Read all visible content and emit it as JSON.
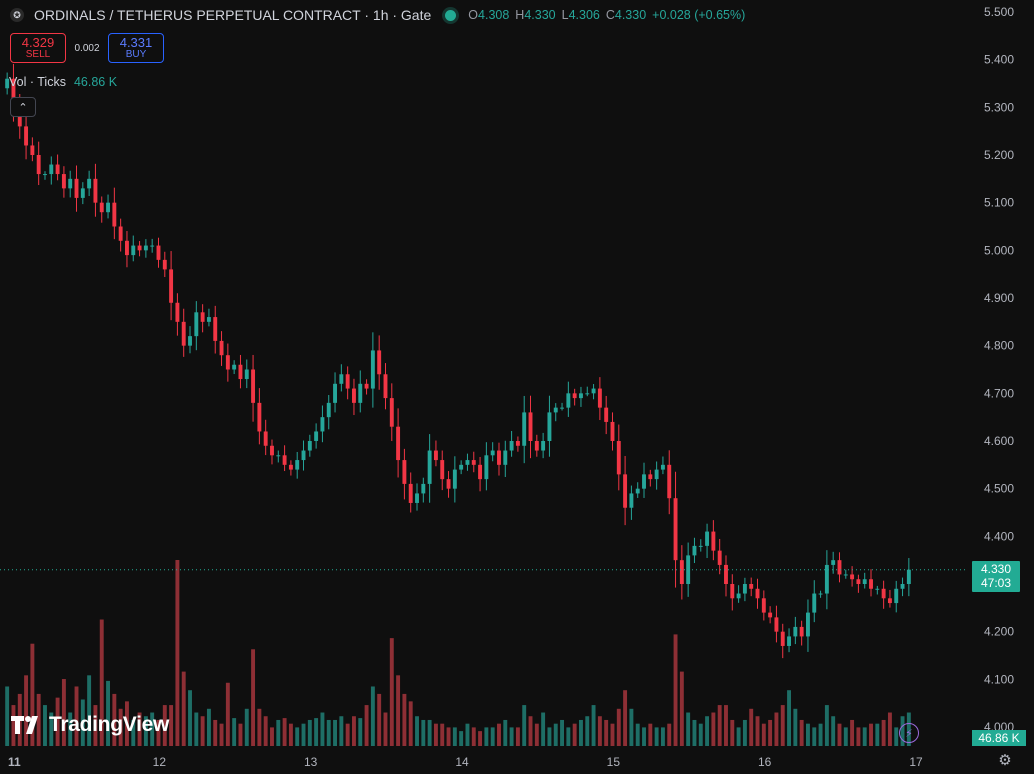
{
  "header": {
    "symbol_icon": "exchange-logo-icon",
    "title": "ORDINALS / TETHERUS PERPETUAL CONTRACT · 1h · Gate",
    "ohlc": {
      "o_label": "O",
      "o": "4.308",
      "h_label": "H",
      "h": "4.330",
      "l_label": "L",
      "l": "4.306",
      "c_label": "C",
      "c": "4.330",
      "change": "+0.028 (+0.65%)"
    }
  },
  "trade": {
    "sell_price": "4.329",
    "sell_label": "SELL",
    "spread": "0.002",
    "buy_price": "4.331",
    "buy_label": "BUY"
  },
  "volume_legend": {
    "label": "Vol · Ticks",
    "value": "46.86 K"
  },
  "collapse_icon": "chevron-up-icon",
  "logo": {
    "text": "TradingView",
    "icon": "tradingview-logo-icon"
  },
  "price_tag": {
    "price": "4.330",
    "countdown": "47:03"
  },
  "volume_tag": "46.86 K",
  "colors": {
    "up": "#26a69a",
    "down": "#f23645",
    "up_vol": "#1e6e66",
    "down_vol": "#8e2f35",
    "background": "#0f0f0f"
  },
  "chart_data": {
    "type": "candlestick",
    "title": "ORDINALS / TETHERUS PERPETUAL CONTRACT · 1h · Gate",
    "interval": "1h",
    "y_ticks": [
      "5.500",
      "5.400",
      "5.300",
      "5.200",
      "5.100",
      "5.000",
      "4.900",
      "4.800",
      "4.700",
      "4.600",
      "4.500",
      "4.400",
      "4.300",
      "4.200",
      "4.100",
      "4.000"
    ],
    "ylim": [
      4.0,
      5.5
    ],
    "x_ticks": [
      "11",
      "12",
      "13",
      "14",
      "15",
      "16",
      "17"
    ],
    "grid": false,
    "last_price": 4.33,
    "closes": [
      5.36,
      5.3,
      5.26,
      5.22,
      5.2,
      5.16,
      5.16,
      5.18,
      5.16,
      5.13,
      5.15,
      5.11,
      5.13,
      5.15,
      5.1,
      5.08,
      5.1,
      5.05,
      5.02,
      4.99,
      5.01,
      5.0,
      5.01,
      5.01,
      4.98,
      4.96,
      4.89,
      4.85,
      4.8,
      4.82,
      4.87,
      4.85,
      4.86,
      4.81,
      4.78,
      4.75,
      4.76,
      4.73,
      4.75,
      4.68,
      4.62,
      4.59,
      4.57,
      4.57,
      4.55,
      4.54,
      4.56,
      4.58,
      4.6,
      4.62,
      4.65,
      4.68,
      4.72,
      4.74,
      4.71,
      4.68,
      4.72,
      4.71,
      4.79,
      4.74,
      4.69,
      4.63,
      4.56,
      4.51,
      4.47,
      4.49,
      4.51,
      4.58,
      4.56,
      4.52,
      4.5,
      4.54,
      4.55,
      4.56,
      4.55,
      4.52,
      4.57,
      4.58,
      4.55,
      4.58,
      4.6,
      4.59,
      4.66,
      4.6,
      4.58,
      4.6,
      4.66,
      4.67,
      4.67,
      4.7,
      4.69,
      4.7,
      4.7,
      4.71,
      4.67,
      4.64,
      4.6,
      4.53,
      4.46,
      4.49,
      4.5,
      4.53,
      4.52,
      4.54,
      4.55,
      4.48,
      4.35,
      4.3,
      4.36,
      4.38,
      4.38,
      4.41,
      4.37,
      4.34,
      4.3,
      4.27,
      4.28,
      4.3,
      4.29,
      4.27,
      4.24,
      4.23,
      4.2,
      4.17,
      4.19,
      4.21,
      4.19,
      4.24,
      4.28,
      4.28,
      4.34,
      4.35,
      4.32,
      4.32,
      4.31,
      4.3,
      4.31,
      4.29,
      4.29,
      4.27,
      4.26,
      4.29,
      4.3,
      4.33
    ],
    "volume_scale_max": 1,
    "volumes": [
      0.32,
      0.22,
      0.28,
      0.38,
      0.55,
      0.28,
      0.22,
      0.18,
      0.26,
      0.36,
      0.18,
      0.32,
      0.25,
      0.38,
      0.22,
      0.68,
      0.35,
      0.28,
      0.2,
      0.24,
      0.14,
      0.18,
      0.16,
      0.18,
      0.14,
      0.22,
      0.22,
      1.0,
      0.4,
      0.3,
      0.18,
      0.16,
      0.2,
      0.14,
      0.12,
      0.34,
      0.15,
      0.12,
      0.2,
      0.52,
      0.2,
      0.16,
      0.1,
      0.14,
      0.15,
      0.12,
      0.1,
      0.12,
      0.14,
      0.15,
      0.18,
      0.14,
      0.14,
      0.16,
      0.12,
      0.16,
      0.15,
      0.22,
      0.32,
      0.28,
      0.18,
      0.58,
      0.38,
      0.28,
      0.24,
      0.16,
      0.14,
      0.14,
      0.12,
      0.12,
      0.1,
      0.1,
      0.08,
      0.12,
      0.1,
      0.08,
      0.1,
      0.1,
      0.12,
      0.14,
      0.1,
      0.1,
      0.22,
      0.16,
      0.12,
      0.18,
      0.1,
      0.12,
      0.14,
      0.1,
      0.12,
      0.14,
      0.16,
      0.22,
      0.16,
      0.14,
      0.12,
      0.2,
      0.3,
      0.2,
      0.12,
      0.1,
      0.12,
      0.1,
      0.1,
      0.12,
      0.6,
      0.4,
      0.18,
      0.14,
      0.12,
      0.16,
      0.18,
      0.22,
      0.22,
      0.14,
      0.1,
      0.14,
      0.2,
      0.16,
      0.12,
      0.14,
      0.18,
      0.22,
      0.3,
      0.2,
      0.14,
      0.12,
      0.1,
      0.12,
      0.22,
      0.16,
      0.12,
      0.1,
      0.14,
      0.1,
      0.1,
      0.12,
      0.12,
      0.14,
      0.18,
      0.1,
      0.16,
      0.18
    ]
  }
}
